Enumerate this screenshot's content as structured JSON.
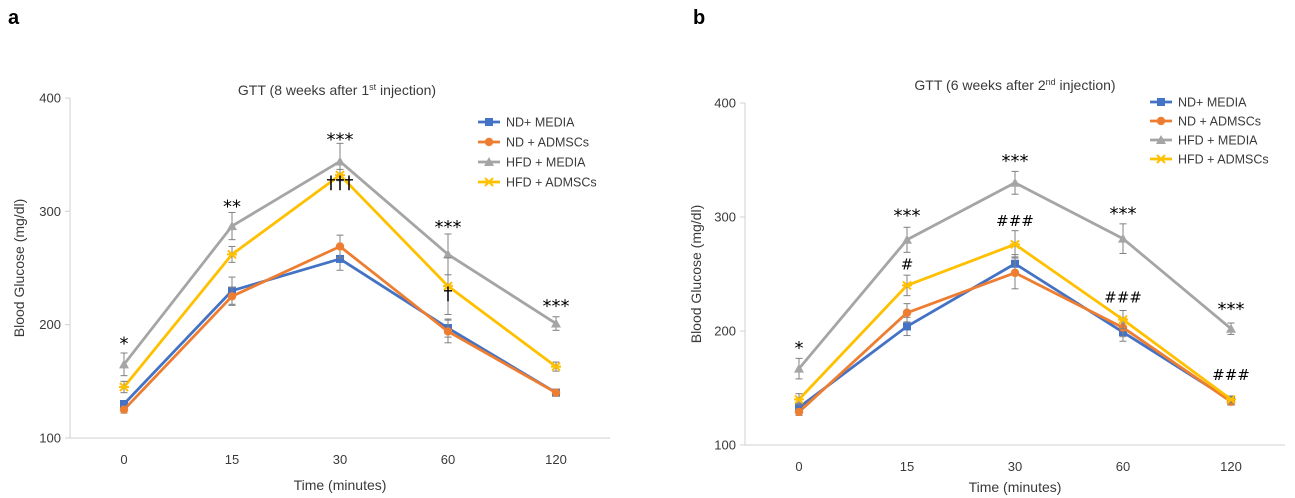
{
  "panels": [
    {
      "letter": "a"
    },
    {
      "letter": "b"
    }
  ],
  "chart_data": [
    {
      "type": "line",
      "title": "GTT (8 weeks after 1",
      "title_sup": "st",
      "title_tail": " injection)",
      "xlabel": "Time (minutes)",
      "ylabel": "Blood Glucose (mg/dl)",
      "categories": [
        "0",
        "15",
        "30",
        "60",
        "120"
      ],
      "ylim": [
        100,
        400
      ],
      "yticks": [
        100,
        200,
        300,
        400
      ],
      "legend_position": "top-right",
      "series": [
        {
          "name": "ND+ MEDIA",
          "color": "#4472C4",
          "marker": "square",
          "values": [
            130,
            230,
            258,
            197,
            140
          ],
          "errors": [
            3,
            12,
            10,
            8,
            3
          ]
        },
        {
          "name": "ND + ADMSCs",
          "color": "#ED7D31",
          "marker": "circle",
          "values": [
            125,
            225,
            269,
            194,
            140
          ],
          "errors": [
            3,
            8,
            10,
            10,
            3
          ]
        },
        {
          "name": "HFD + MEDIA",
          "color": "#A5A5A5",
          "marker": "triangle",
          "values": [
            165,
            287,
            344,
            262,
            201
          ],
          "errors": [
            10,
            12,
            16,
            18,
            6
          ]
        },
        {
          "name": "HFD + ADMSCs",
          "color": "#FFC000",
          "marker": "x",
          "values": [
            145,
            262,
            332,
            234,
            163
          ],
          "errors": [
            5,
            7,
            5,
            25,
            4
          ]
        }
      ],
      "annotations": [
        {
          "text": "*",
          "x": "0",
          "y": 178
        },
        {
          "text": "**",
          "x": "15",
          "y": 299
        },
        {
          "text": "***",
          "x": "30",
          "y": 358
        },
        {
          "text": "†††",
          "x": "30",
          "y": 320
        },
        {
          "text": "***",
          "x": "60",
          "y": 281
        },
        {
          "text": "†",
          "x": "60",
          "y": 222
        },
        {
          "text": "***",
          "x": "120",
          "y": 211
        }
      ]
    },
    {
      "type": "line",
      "title": "GTT (6 weeks after 2",
      "title_sup": "nd",
      "title_tail": " injection)",
      "xlabel": "Time  (minutes)",
      "ylabel": "Blood Glucose  (mg/dl)",
      "categories": [
        "0",
        "15",
        "30",
        "60",
        "120"
      ],
      "ylim": [
        100,
        400
      ],
      "yticks": [
        100,
        200,
        300,
        400
      ],
      "legend_position": "top-right",
      "series": [
        {
          "name": "ND+ MEDIA",
          "color": "#4472C4",
          "marker": "square",
          "values": [
            133,
            204,
            259,
            199,
            139
          ],
          "errors": [
            4,
            8,
            8,
            8,
            3
          ]
        },
        {
          "name": "ND + ADMSCs",
          "color": "#ED7D31",
          "marker": "circle",
          "values": [
            129,
            216,
            251,
            203,
            138
          ],
          "errors": [
            3,
            8,
            14,
            8,
            3
          ]
        },
        {
          "name": "HFD + MEDIA",
          "color": "#A5A5A5",
          "marker": "triangle",
          "values": [
            167,
            280,
            330,
            281,
            202
          ],
          "errors": [
            9,
            11,
            10,
            13,
            5
          ]
        },
        {
          "name": "HFD + ADMSCs",
          "color": "#FFC000",
          "marker": "x",
          "values": [
            140,
            240,
            276,
            210,
            140
          ],
          "errors": [
            5,
            9,
            12,
            8,
            3
          ]
        }
      ],
      "annotations": [
        {
          "text": "*",
          "x": "0",
          "y": 180
        },
        {
          "text": "***",
          "x": "15",
          "y": 296
        },
        {
          "text": "#",
          "x": "15",
          "y": 254
        },
        {
          "text": "***",
          "x": "30",
          "y": 344
        },
        {
          "text": "###",
          "x": "30",
          "y": 292
        },
        {
          "text": "***",
          "x": "60",
          "y": 298
        },
        {
          "text": "###",
          "x": "60",
          "y": 225
        },
        {
          "text": "***",
          "x": "120",
          "y": 214
        },
        {
          "text": "###",
          "x": "120",
          "y": 157
        }
      ]
    }
  ]
}
